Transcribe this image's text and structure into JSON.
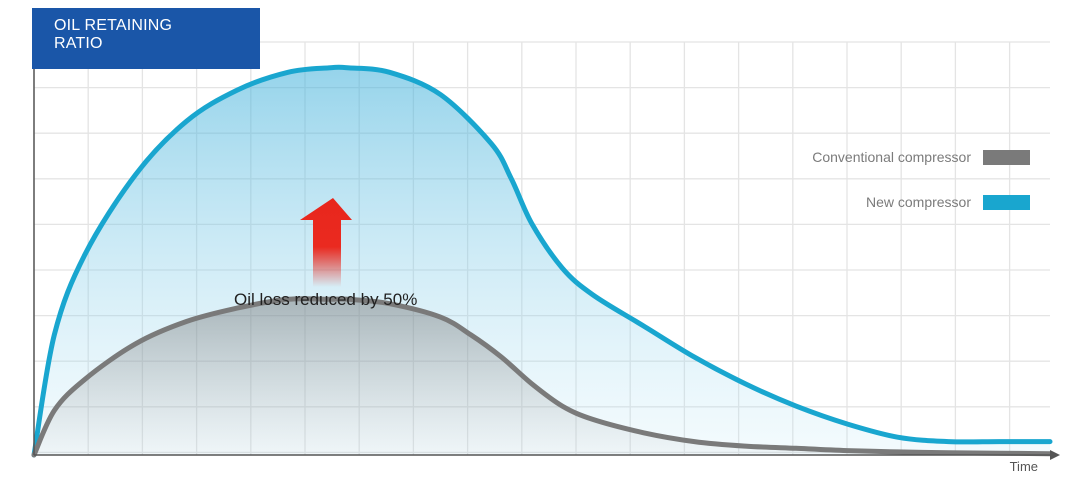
{
  "title": {
    "line1": "OIL RETAINING",
    "line2": "RATIO"
  },
  "annotation": "Oil loss reduced by 50%",
  "colors": {
    "title_bg": "#1a56a8",
    "new": "#19a6cf",
    "conventional": "#7a7a7a",
    "arrow": "#e8261c",
    "grid": "#e4e4e4"
  },
  "chart_data": {
    "type": "area",
    "title": "OIL RETAINING RATIO",
    "xlabel": "Time",
    "ylabel": "",
    "xlim": [
      0,
      100
    ],
    "ylim": [
      0,
      100
    ],
    "grid": true,
    "legend_position": "right",
    "series": [
      {
        "name": "New compressor",
        "x": [
          0,
          2,
          5,
          10,
          15,
          20,
          25,
          29,
          31,
          35,
          40,
          45,
          47,
          49,
          52,
          55,
          60,
          65,
          70,
          75,
          80,
          85,
          90,
          95,
          100
        ],
        "y": [
          0,
          27,
          45,
          63,
          75,
          82,
          86,
          87,
          87,
          86,
          81,
          70,
          62,
          52,
          42,
          36,
          29,
          22,
          16,
          11,
          7,
          4,
          3,
          3,
          3
        ]
      },
      {
        "name": "Conventional compressor",
        "x": [
          0,
          2,
          5,
          10,
          15,
          20,
          25,
          29,
          31,
          35,
          40,
          43,
          46,
          49,
          52,
          55,
          60,
          65,
          70,
          75,
          80,
          85,
          90,
          95,
          100
        ],
        "y": [
          0,
          10,
          17,
          25,
          30,
          33,
          35,
          35,
          35,
          34,
          31,
          27,
          22,
          16,
          11,
          8,
          5,
          3,
          2,
          1.5,
          1,
          0.7,
          0.5,
          0.4,
          0.3
        ]
      }
    ]
  }
}
